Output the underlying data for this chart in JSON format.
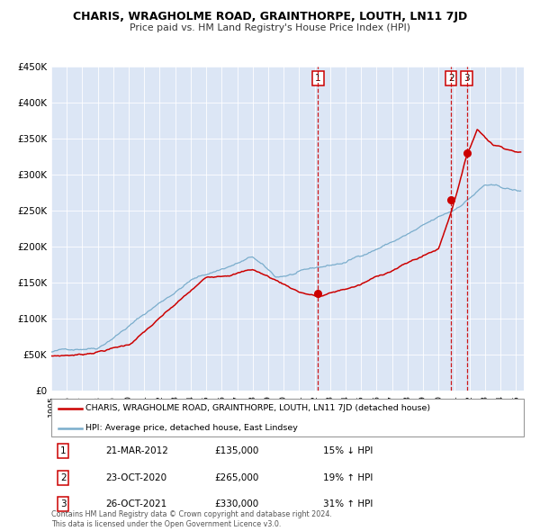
{
  "title": "CHARIS, WRAGHOLME ROAD, GRAINTHORPE, LOUTH, LN11 7JD",
  "subtitle": "Price paid vs. HM Land Registry's House Price Index (HPI)",
  "legend_label_red": "CHARIS, WRAGHOLME ROAD, GRAINTHORPE, LOUTH, LN11 7JD (detached house)",
  "legend_label_blue": "HPI: Average price, detached house, East Lindsey",
  "footnote1": "Contains HM Land Registry data © Crown copyright and database right 2024.",
  "footnote2": "This data is licensed under the Open Government Licence v3.0.",
  "table_data": [
    [
      "1",
      "21-MAR-2012",
      "£135,000",
      "15% ↓ HPI"
    ],
    [
      "2",
      "23-OCT-2020",
      "£265,000",
      "19% ↑ HPI"
    ],
    [
      "3",
      "26-OCT-2021",
      "£330,000",
      "31% ↑ HPI"
    ]
  ],
  "transaction_years": [
    2012.22,
    2020.81,
    2021.82
  ],
  "transaction_values": [
    135000,
    265000,
    330000
  ],
  "red_color": "#cc0000",
  "blue_color": "#7aadcc",
  "bg_color": "#dce6f5",
  "ylim": [
    0,
    450000
  ],
  "xlim_start": 1995,
  "xlim_end": 2025.5,
  "ylabel_ticks": [
    "£0",
    "£50K",
    "£100K",
    "£150K",
    "£200K",
    "£250K",
    "£300K",
    "£350K",
    "£400K",
    "£450K"
  ],
  "ytick_values": [
    0,
    50000,
    100000,
    150000,
    200000,
    250000,
    300000,
    350000,
    400000,
    450000
  ],
  "xtick_years": [
    1995,
    1996,
    1997,
    1998,
    1999,
    2000,
    2001,
    2002,
    2003,
    2004,
    2005,
    2006,
    2007,
    2008,
    2009,
    2010,
    2011,
    2012,
    2013,
    2014,
    2015,
    2016,
    2017,
    2018,
    2019,
    2020,
    2021,
    2022,
    2023,
    2024,
    2025
  ]
}
